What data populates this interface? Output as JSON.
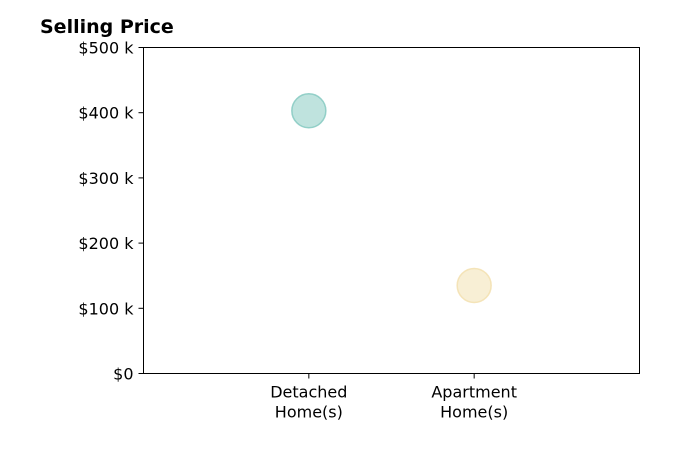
{
  "chart_data": {
    "type": "scatter",
    "title": "Selling Price",
    "categories": [
      [
        "Detached",
        "Home(s)"
      ],
      [
        "Apartment",
        "Home(s)"
      ]
    ],
    "yticks": [
      0,
      100,
      200,
      300,
      400,
      500
    ],
    "ytick_labels": [
      "$0",
      "$100 k",
      "$200 k",
      "$300 k",
      "$400 k",
      "$500 k"
    ],
    "ylim": [
      0,
      500
    ],
    "xlim": [
      0,
      3
    ],
    "points": [
      {
        "category_index": 1,
        "value": 403,
        "color": "#7fc7be"
      },
      {
        "category_index": 2,
        "value": 135,
        "color": "#f2dfab"
      }
    ],
    "grid": false,
    "legend": false
  }
}
